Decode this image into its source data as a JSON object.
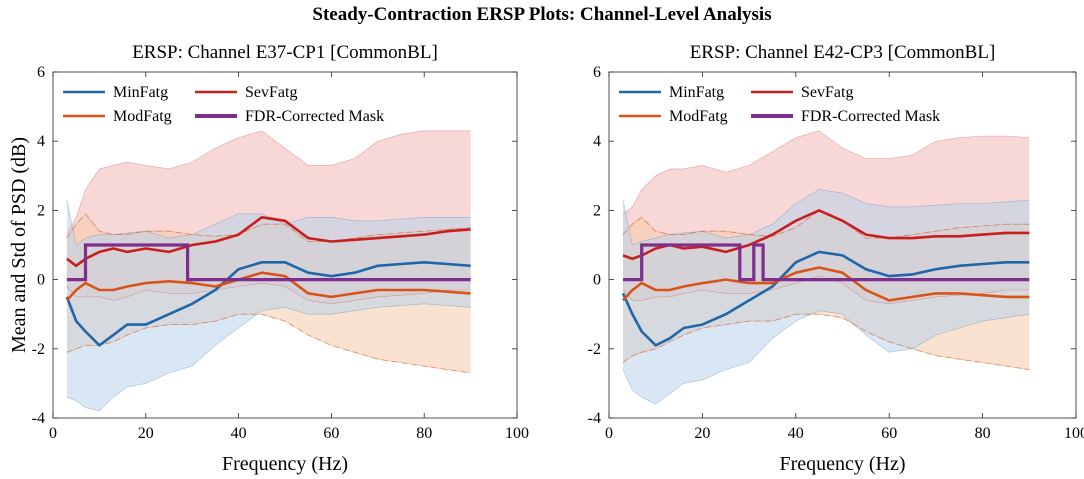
{
  "figure": {
    "title": "Steady-Contraction ERSP Plots: Channel-Level Analysis"
  },
  "colors": {
    "MinFatg": "#1f66aa",
    "ModFatg": "#d95319",
    "SevFatg": "#c81e1e",
    "Mask": "#7e2f8e",
    "MinFill": "#b8d4ea",
    "ModFill": "#f6caaa",
    "SevFill": "#f3b6b6"
  },
  "chart_data": [
    {
      "type": "line",
      "title": "ERSP: Channel E37-CP1 [CommonBL]",
      "xlabel": "Frequency (Hz)",
      "ylabel": "Mean and Std of PSD (dB)",
      "xlim": [
        0,
        100
      ],
      "ylim": [
        -4,
        6
      ],
      "xticks": [
        0,
        20,
        40,
        60,
        80,
        100
      ],
      "yticks": [
        -4,
        -2,
        0,
        2,
        4,
        6
      ],
      "legend_position": "top-left",
      "x": [
        3,
        5,
        7,
        10,
        13,
        16,
        20,
        25,
        30,
        35,
        40,
        45,
        50,
        55,
        60,
        65,
        70,
        75,
        80,
        85,
        90
      ],
      "series": [
        {
          "name": "MinFatg",
          "color_key": "MinFatg",
          "mean": [
            -0.5,
            -1.2,
            -1.5,
            -1.9,
            -1.6,
            -1.3,
            -1.3,
            -1.0,
            -0.7,
            -0.3,
            0.3,
            0.5,
            0.5,
            0.2,
            0.1,
            0.2,
            0.4,
            0.45,
            0.5,
            0.45,
            0.4
          ],
          "upper": [
            2.3,
            1.0,
            1.2,
            1.3,
            1.3,
            1.35,
            1.4,
            1.2,
            1.3,
            1.6,
            1.9,
            1.9,
            1.6,
            1.8,
            1.8,
            1.7,
            1.7,
            1.75,
            1.8,
            1.8,
            1.8
          ],
          "lower": [
            -3.4,
            -3.5,
            -3.7,
            -3.8,
            -3.4,
            -3.1,
            -3.0,
            -2.7,
            -2.5,
            -1.9,
            -1.4,
            -0.9,
            -0.8,
            -1.0,
            -1.0,
            -0.9,
            -0.8,
            -0.75,
            -0.7,
            -0.75,
            -0.8
          ]
        },
        {
          "name": "ModFatg",
          "color_key": "ModFatg",
          "mean": [
            -0.6,
            -0.3,
            -0.1,
            -0.3,
            -0.3,
            -0.2,
            -0.1,
            -0.05,
            -0.1,
            -0.2,
            0.0,
            0.2,
            0.1,
            -0.4,
            -0.5,
            -0.4,
            -0.3,
            -0.3,
            -0.3,
            -0.35,
            -0.4
          ],
          "upper": [
            1.2,
            1.6,
            1.9,
            1.4,
            1.3,
            1.3,
            1.4,
            1.4,
            1.3,
            1.25,
            1.3,
            1.6,
            1.6,
            1.1,
            1.1,
            1.2,
            1.3,
            1.35,
            1.4,
            1.45,
            1.5
          ],
          "lower": [
            -2.1,
            -2.0,
            -1.9,
            -1.9,
            -1.8,
            -1.6,
            -1.4,
            -1.3,
            -1.3,
            -1.2,
            -1.0,
            -1.0,
            -1.2,
            -1.6,
            -1.9,
            -2.1,
            -2.3,
            -2.4,
            -2.5,
            -2.6,
            -2.7
          ]
        },
        {
          "name": "SevFatg",
          "color_key": "SevFatg",
          "mean": [
            0.6,
            0.4,
            0.6,
            0.8,
            0.9,
            0.8,
            0.9,
            0.8,
            1.0,
            1.1,
            1.3,
            1.8,
            1.7,
            1.2,
            1.1,
            1.15,
            1.2,
            1.25,
            1.3,
            1.4,
            1.45
          ],
          "upper": [
            1.3,
            1.8,
            2.6,
            3.2,
            3.3,
            3.4,
            3.3,
            3.2,
            3.4,
            3.8,
            4.1,
            4.3,
            3.8,
            3.3,
            3.3,
            3.5,
            4.0,
            4.2,
            4.3,
            4.3,
            4.3
          ],
          "lower": [
            -0.2,
            -0.5,
            -0.5,
            -0.5,
            -0.6,
            -0.5,
            -0.3,
            -0.4,
            -0.4,
            -0.3,
            -0.2,
            -0.1,
            -0.2,
            -0.6,
            -0.7,
            -0.6,
            -0.5,
            -0.45,
            -0.4,
            -0.3,
            -0.3
          ]
        }
      ],
      "mask": {
        "name": "FDR-Corrected Mask",
        "color_key": "Mask",
        "x": [
          3,
          7,
          7,
          29,
          29,
          90
        ],
        "y": [
          0,
          0,
          1,
          1,
          0,
          0
        ]
      }
    },
    {
      "type": "line",
      "title": "ERSP: Channel E42-CP3 [CommonBL]",
      "xlabel": "Frequency (Hz)",
      "ylabel": "",
      "xlim": [
        0,
        100
      ],
      "ylim": [
        -4,
        6
      ],
      "xticks": [
        0,
        20,
        40,
        60,
        80,
        100
      ],
      "yticks": [
        -4,
        -2,
        0,
        2,
        4,
        6
      ],
      "legend_position": "top-left",
      "x": [
        3,
        5,
        7,
        10,
        13,
        16,
        20,
        25,
        30,
        35,
        40,
        45,
        50,
        55,
        60,
        65,
        70,
        75,
        80,
        85,
        90
      ],
      "series": [
        {
          "name": "MinFatg",
          "color_key": "MinFatg",
          "mean": [
            -0.4,
            -1.0,
            -1.5,
            -1.9,
            -1.7,
            -1.4,
            -1.3,
            -1.0,
            -0.6,
            -0.2,
            0.5,
            0.8,
            0.7,
            0.3,
            0.1,
            0.15,
            0.3,
            0.4,
            0.45,
            0.5,
            0.5
          ],
          "upper": [
            2.3,
            1.0,
            1.1,
            1.2,
            1.3,
            1.35,
            1.4,
            1.2,
            1.3,
            1.6,
            2.2,
            2.6,
            2.5,
            2.2,
            2.1,
            2.1,
            2.15,
            2.2,
            2.2,
            2.25,
            2.3
          ],
          "lower": [
            -2.6,
            -3.2,
            -3.4,
            -3.6,
            -3.3,
            -3.0,
            -2.9,
            -2.6,
            -2.4,
            -1.7,
            -1.2,
            -0.9,
            -1.0,
            -1.6,
            -2.1,
            -2.0,
            -1.6,
            -1.4,
            -1.2,
            -1.1,
            -1.0
          ]
        },
        {
          "name": "ModFatg",
          "color_key": "ModFatg",
          "mean": [
            -0.6,
            -0.3,
            -0.1,
            -0.3,
            -0.3,
            -0.2,
            -0.1,
            0.0,
            -0.1,
            -0.1,
            0.2,
            0.35,
            0.2,
            -0.3,
            -0.6,
            -0.5,
            -0.4,
            -0.4,
            -0.45,
            -0.5,
            -0.5
          ],
          "upper": [
            1.3,
            1.6,
            1.8,
            1.4,
            1.3,
            1.3,
            1.4,
            1.4,
            1.3,
            1.25,
            1.5,
            2.0,
            1.7,
            1.2,
            1.2,
            1.3,
            1.4,
            1.5,
            1.55,
            1.6,
            1.6
          ],
          "lower": [
            -2.4,
            -2.2,
            -2.1,
            -2.0,
            -1.8,
            -1.6,
            -1.4,
            -1.3,
            -1.2,
            -1.2,
            -1.0,
            -1.0,
            -1.1,
            -1.5,
            -1.8,
            -2.0,
            -2.2,
            -2.3,
            -2.4,
            -2.5,
            -2.6
          ]
        },
        {
          "name": "SevFatg",
          "color_key": "SevFatg",
          "mean": [
            0.7,
            0.6,
            0.7,
            0.9,
            1.0,
            0.9,
            0.95,
            0.8,
            1.0,
            1.3,
            1.7,
            2.0,
            1.7,
            1.3,
            1.2,
            1.2,
            1.25,
            1.25,
            1.3,
            1.35,
            1.35
          ],
          "upper": [
            1.9,
            2.1,
            2.6,
            3.0,
            3.2,
            3.2,
            3.3,
            3.1,
            3.3,
            3.7,
            4.1,
            4.3,
            3.8,
            3.5,
            3.5,
            3.6,
            4.0,
            4.1,
            4.15,
            4.15,
            4.1
          ],
          "lower": [
            -0.3,
            -0.6,
            -0.6,
            -0.5,
            -0.5,
            -0.4,
            -0.3,
            -0.4,
            -0.4,
            -0.3,
            -0.1,
            0.1,
            -0.1,
            -0.6,
            -0.7,
            -0.6,
            -0.5,
            -0.45,
            -0.4,
            -0.3,
            -0.3
          ]
        }
      ],
      "mask": {
        "name": "FDR-Corrected Mask",
        "color_key": "Mask",
        "x": [
          3,
          7,
          7,
          28,
          28,
          31,
          31,
          33,
          33,
          90
        ],
        "y": [
          0,
          0,
          1,
          1,
          0,
          0,
          1,
          1,
          0,
          0
        ]
      }
    }
  ]
}
